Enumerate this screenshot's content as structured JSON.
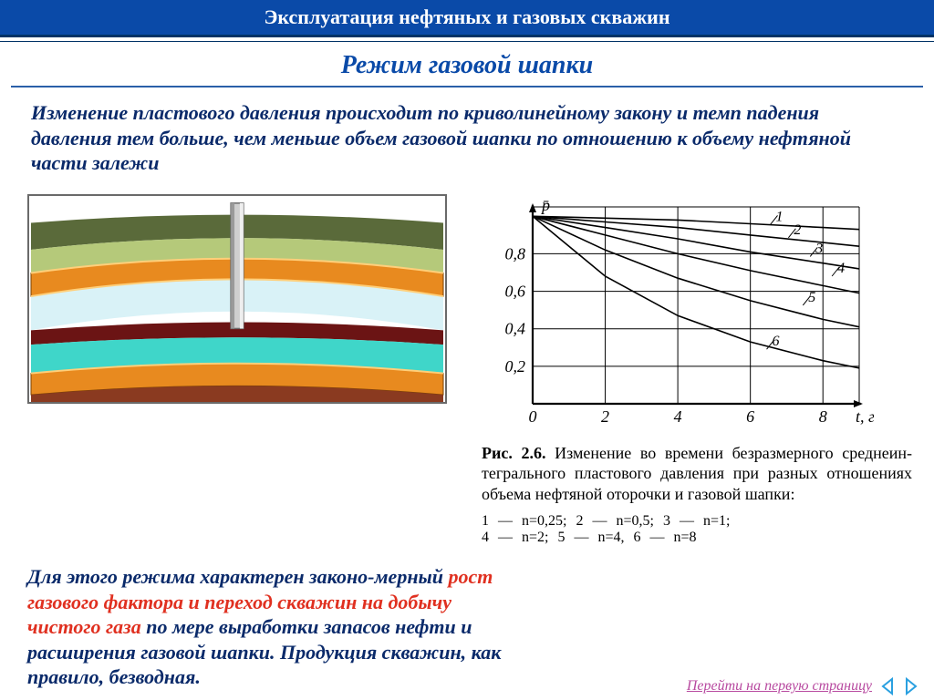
{
  "header": {
    "course": "Эксплуатация нефтяных и газовых скважин"
  },
  "title": "Режим газовой шапки",
  "intro": "Изменение пластового давления происходит по криволинейному закону и темп падения давления тем больше, чем меньше объем газовой шапки по отношению к объему нефтяной части залежи",
  "para2": {
    "pre": "Для этого режима характерен законо-мерный ",
    "red": "рост газового фактора и переход скважин на добычу чистого газа",
    "mid": " по мере выработки запасов нефти и расширения газовой шапки. ",
    "tail": "Продукция скважин, как правило, безводная."
  },
  "chart": {
    "type": "line",
    "xlabel": "t, г",
    "ylabel": "p̄",
    "xlim": [
      0,
      9
    ],
    "ylim": [
      0,
      1.05
    ],
    "xticks": [
      0,
      2,
      4,
      6,
      8
    ],
    "yticks": [
      0.2,
      0.4,
      0.6,
      0.8
    ],
    "grid_color": "#000000",
    "background": "#ffffff",
    "line_color": "#000000",
    "line_width": 1.6,
    "series": {
      "1": [
        [
          0,
          1.0
        ],
        [
          2,
          0.99
        ],
        [
          4,
          0.98
        ],
        [
          6,
          0.96
        ],
        [
          8,
          0.94
        ],
        [
          9,
          0.93
        ]
      ],
      "2": [
        [
          0,
          1.0
        ],
        [
          2,
          0.97
        ],
        [
          4,
          0.94
        ],
        [
          6,
          0.9
        ],
        [
          8,
          0.86
        ],
        [
          9,
          0.84
        ]
      ],
      "3": [
        [
          0,
          1.0
        ],
        [
          2,
          0.94
        ],
        [
          4,
          0.88
        ],
        [
          6,
          0.81
        ],
        [
          8,
          0.75
        ],
        [
          9,
          0.72
        ]
      ],
      "4": [
        [
          0,
          1.0
        ],
        [
          2,
          0.9
        ],
        [
          4,
          0.8
        ],
        [
          6,
          0.71
        ],
        [
          8,
          0.63
        ],
        [
          9,
          0.59
        ]
      ],
      "5": [
        [
          0,
          1.0
        ],
        [
          2,
          0.82
        ],
        [
          4,
          0.67
        ],
        [
          6,
          0.55
        ],
        [
          8,
          0.45
        ],
        [
          9,
          0.41
        ]
      ],
      "6": [
        [
          0,
          1.0
        ],
        [
          2,
          0.68
        ],
        [
          4,
          0.47
        ],
        [
          6,
          0.33
        ],
        [
          8,
          0.23
        ],
        [
          9,
          0.19
        ]
      ]
    },
    "series_label_pos": {
      "1": [
        6.7,
        0.975
      ],
      "2": [
        7.2,
        0.905
      ],
      "3": [
        7.8,
        0.805
      ],
      "4": [
        8.4,
        0.7
      ],
      "5": [
        7.6,
        0.545
      ],
      "6": [
        6.6,
        0.31
      ]
    }
  },
  "figcaption": {
    "no": "Рис. 2.6.",
    "text": " Изменение во вре­мени безразмерного среднеин­тегрального пластового давле­ния при разных отношениях объема нефтяной оторочки и газовой шапки:"
  },
  "legend": "1 — n=0,25;   2 — n=0,5;   3 — n=1;\n4 — n=2;   5 — n=4,   6 — n=8",
  "footer": {
    "link": "Перейти на первую страницу"
  },
  "cross_section": {
    "colors": {
      "sky": "#ffffff",
      "top_soil_dark": "#5a6a3a",
      "top_soil_light": "#b5c97a",
      "seal_orange": "#e88a1f",
      "gas_cap": "#d9f2f7",
      "oil": "#6b1414",
      "water": "#3fd6c9",
      "base_brown": "#8a3a20",
      "well": "#cfcfcf",
      "well_edge": "#6a6a6a"
    }
  }
}
